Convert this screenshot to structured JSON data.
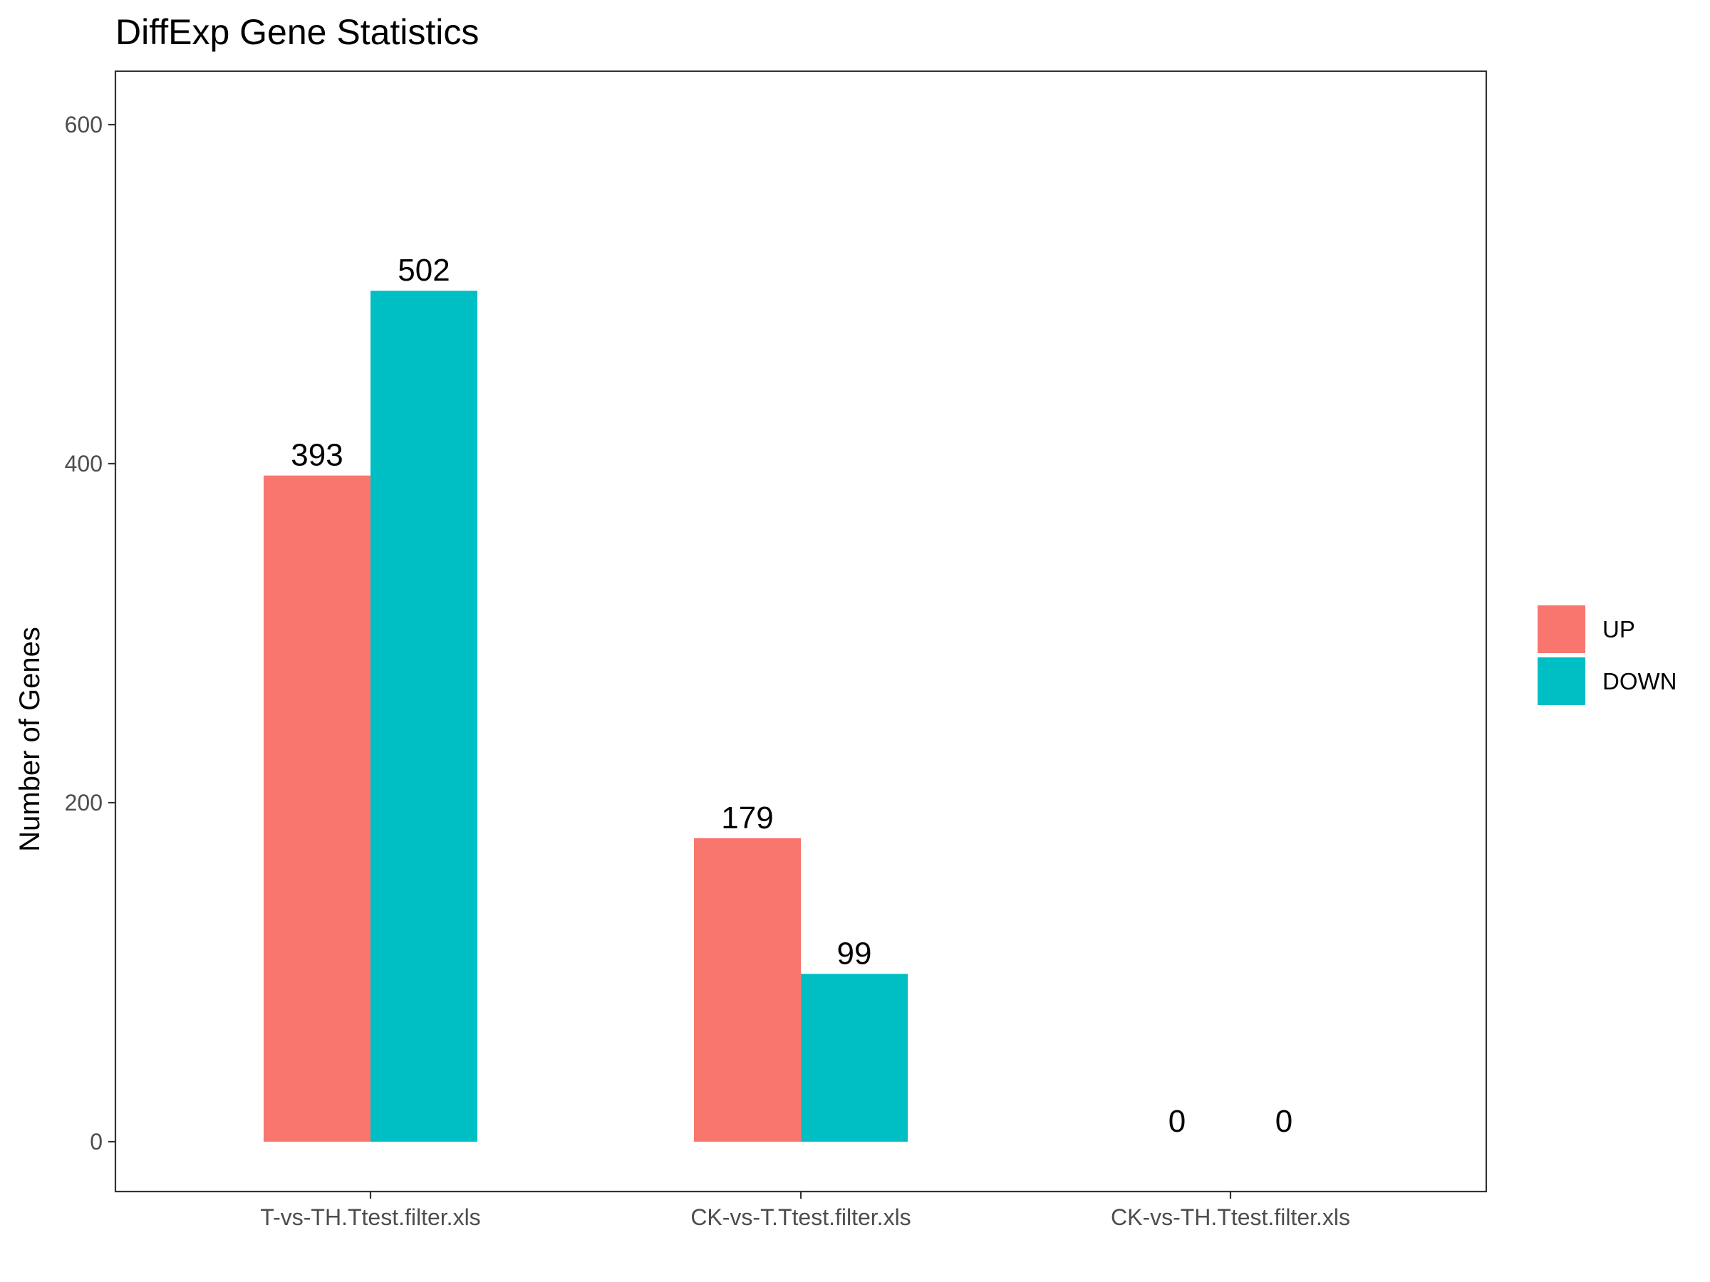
{
  "chart_data": {
    "type": "bar",
    "title": "DiffExp Gene Statistics",
    "xlabel": "",
    "ylabel": "Number of Genes",
    "categories": [
      "T-vs-TH.Ttest.filter.xls",
      "CK-vs-T.Ttest.filter.xls",
      "CK-vs-TH.Ttest.filter.xls"
    ],
    "series": [
      {
        "name": "UP",
        "color": "#F8766D",
        "values": [
          393,
          179,
          0
        ]
      },
      {
        "name": "DOWN",
        "color": "#00BFC4",
        "values": [
          502,
          99,
          0
        ]
      }
    ],
    "yticks": [
      0,
      200,
      400,
      600
    ],
    "ylim": [
      -29,
      632
    ],
    "grid": false,
    "legend": "right"
  }
}
